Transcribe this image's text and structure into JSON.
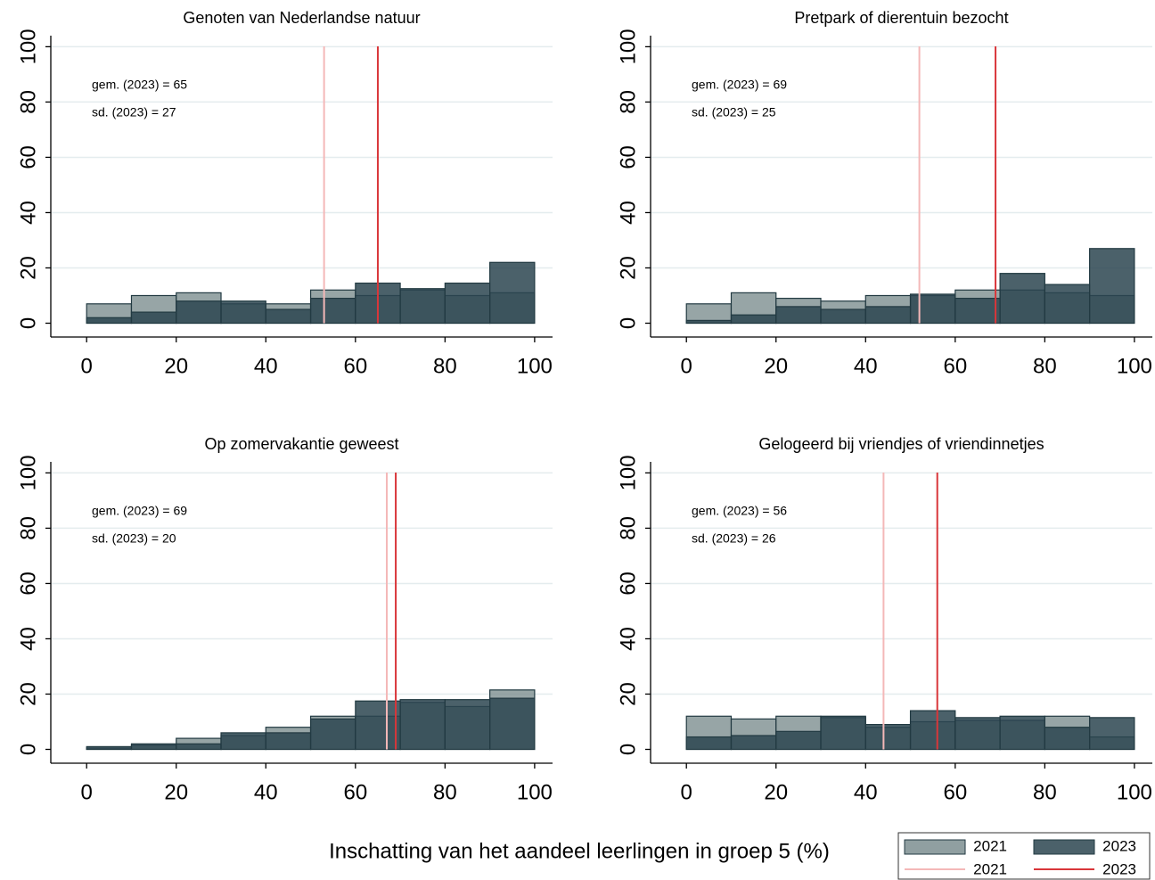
{
  "xlabel": "Inschatting van het aandeel leerlingen in groep 5 (%)",
  "chart_data": [
    {
      "type": "histogram",
      "title": "Genoten van Nederlandse natuur",
      "annotations": [
        "gem. (2023) = 65",
        "sd. (2023) = 27"
      ],
      "bins": [
        0,
        10,
        20,
        30,
        40,
        50,
        60,
        70,
        80,
        90,
        100
      ],
      "series": [
        {
          "name": "2021",
          "color": "#7d8e90",
          "values": [
            7,
            10,
            11,
            7,
            7,
            12,
            10,
            12,
            10,
            11
          ]
        },
        {
          "name": "2023",
          "color": "#2c4550",
          "values": [
            2,
            4,
            8,
            8,
            5,
            9,
            14.5,
            12.5,
            14.5,
            22
          ]
        }
      ],
      "mean_lines": [
        {
          "name": "2021",
          "color": "#f4b8b8",
          "value": 53
        },
        {
          "name": "2023",
          "color": "#d9363a",
          "value": 65
        }
      ],
      "xlim": [
        -8,
        104
      ],
      "xticks": [
        0,
        20,
        40,
        60,
        80,
        100
      ],
      "ylim": [
        -5,
        104
      ],
      "yticks": [
        0,
        20,
        40,
        60,
        80,
        100
      ],
      "grid": true
    },
    {
      "type": "histogram",
      "title": "Pretpark of dierentuin bezocht",
      "annotations": [
        "gem. (2023) = 69",
        "sd. (2023) = 25"
      ],
      "bins": [
        0,
        10,
        20,
        30,
        40,
        50,
        60,
        70,
        80,
        90,
        100
      ],
      "series": [
        {
          "name": "2021",
          "color": "#7d8e90",
          "values": [
            7,
            11,
            9,
            8,
            10,
            10,
            12,
            12,
            11,
            10
          ]
        },
        {
          "name": "2023",
          "color": "#2c4550",
          "values": [
            1,
            3,
            6,
            5,
            6,
            10.5,
            9,
            18,
            14,
            27
          ]
        }
      ],
      "mean_lines": [
        {
          "name": "2021",
          "color": "#f4b8b8",
          "value": 52
        },
        {
          "name": "2023",
          "color": "#d9363a",
          "value": 69
        }
      ],
      "xlim": [
        -8,
        104
      ],
      "xticks": [
        0,
        20,
        40,
        60,
        80,
        100
      ],
      "ylim": [
        -5,
        104
      ],
      "yticks": [
        0,
        20,
        40,
        60,
        80,
        100
      ],
      "grid": true
    },
    {
      "type": "histogram",
      "title": "Op zomervakantie geweest",
      "annotations": [
        "gem. (2023) = 69",
        "sd. (2023) = 20"
      ],
      "bins": [
        0,
        10,
        20,
        30,
        40,
        50,
        60,
        70,
        80,
        90,
        100
      ],
      "series": [
        {
          "name": "2021",
          "color": "#7d8e90",
          "values": [
            0.5,
            1.5,
            4,
            5,
            8,
            12,
            12,
            17,
            15.5,
            21.5
          ]
        },
        {
          "name": "2023",
          "color": "#2c4550",
          "values": [
            1,
            2,
            2,
            6,
            6,
            11,
            17.5,
            18,
            18,
            18.5
          ]
        }
      ],
      "mean_lines": [
        {
          "name": "2021",
          "color": "#f4b8b8",
          "value": 67
        },
        {
          "name": "2023",
          "color": "#d9363a",
          "value": 69
        }
      ],
      "xlim": [
        -8,
        104
      ],
      "xticks": [
        0,
        20,
        40,
        60,
        80,
        100
      ],
      "ylim": [
        -5,
        104
      ],
      "yticks": [
        0,
        20,
        40,
        60,
        80,
        100
      ],
      "grid": true
    },
    {
      "type": "histogram",
      "title": "Gelogeerd bij vriendjes of vriendinnetjes",
      "annotations": [
        "gem. (2023) = 56",
        "sd. (2023) = 26"
      ],
      "bins": [
        0,
        10,
        20,
        30,
        40,
        50,
        60,
        70,
        80,
        90,
        100
      ],
      "series": [
        {
          "name": "2021",
          "color": "#7d8e90",
          "values": [
            12,
            11,
            12,
            11.5,
            8,
            10,
            10.5,
            10.5,
            12,
            4.5
          ]
        },
        {
          "name": "2023",
          "color": "#2c4550",
          "values": [
            4.5,
            5,
            6.5,
            12,
            9,
            14,
            11.5,
            12,
            8,
            11.5
          ]
        }
      ],
      "mean_lines": [
        {
          "name": "2021",
          "color": "#f4b8b8",
          "value": 44
        },
        {
          "name": "2023",
          "color": "#d9363a",
          "value": 56
        }
      ],
      "xlim": [
        -8,
        104
      ],
      "xticks": [
        0,
        20,
        40,
        60,
        80,
        100
      ],
      "ylim": [
        -5,
        104
      ],
      "yticks": [
        0,
        20,
        40,
        60,
        80,
        100
      ],
      "grid": true
    }
  ]
}
